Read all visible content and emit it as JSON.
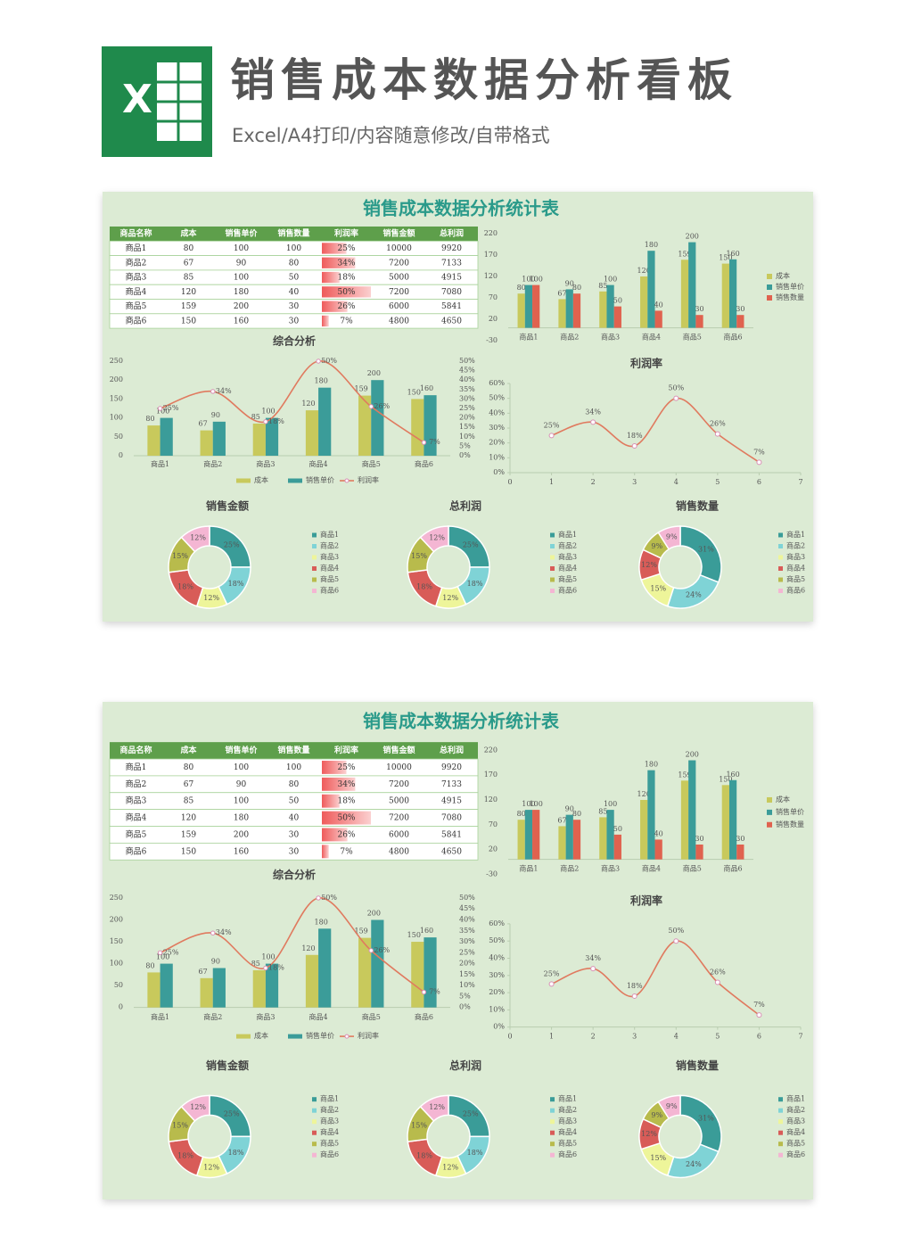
{
  "header": {
    "logo_letter": "X",
    "title": "销售成本数据分析看板",
    "subtitle": "Excel/A4打印/内容随意修改/自带格式"
  },
  "dashboard": {
    "title": "销售成本数据分析统计表",
    "table": {
      "columns": [
        "商品名称",
        "成本",
        "销售单价",
        "销售数量",
        "利润率",
        "销售金额",
        "总利润"
      ],
      "rows": [
        [
          "商品1",
          80,
          100,
          100,
          "25%",
          10000,
          9920
        ],
        [
          "商品2",
          67,
          90,
          80,
          "34%",
          7200,
          7133
        ],
        [
          "商品3",
          85,
          100,
          50,
          "18%",
          5000,
          4915
        ],
        [
          "商品4",
          120,
          180,
          40,
          "50%",
          7200,
          7080
        ],
        [
          "商品5",
          159,
          200,
          30,
          "26%",
          6000,
          5841
        ],
        [
          "商品6",
          150,
          160,
          30,
          "7%",
          4800,
          4650
        ]
      ]
    },
    "bars": {
      "type": "bar",
      "categories": [
        "商品1",
        "商品2",
        "商品3",
        "商品4",
        "商品5",
        "商品6"
      ],
      "series": [
        {
          "name": "成本",
          "color": "#c8c95c",
          "values": [
            80,
            67,
            85,
            120,
            159,
            150
          ]
        },
        {
          "name": "销售单价",
          "color": "#3b9c99",
          "values": [
            100,
            90,
            100,
            180,
            200,
            160
          ]
        },
        {
          "name": "销售数量",
          "color": "#e0624f",
          "values": [
            100,
            80,
            50,
            40,
            30,
            30
          ]
        }
      ],
      "ylim": [
        -30,
        220
      ],
      "yticks": [
        -30,
        20,
        70,
        120,
        170,
        220
      ],
      "grid": false
    },
    "combo": {
      "type": "bar",
      "title": "综合分析",
      "categories": [
        "商品1",
        "商品2",
        "商品3",
        "商品4",
        "商品5",
        "商品6"
      ],
      "series": [
        {
          "name": "成本",
          "color": "#c8c95c",
          "values": [
            80,
            67,
            85,
            120,
            159,
            150
          ]
        },
        {
          "name": "销售单价",
          "color": "#3b9c99",
          "values": [
            100,
            90,
            100,
            180,
            200,
            160
          ]
        },
        {
          "name": "利润率",
          "color": "#e07a5f",
          "axis": "y2",
          "type": "line",
          "values": [
            25,
            34,
            18,
            50,
            26,
            7
          ],
          "value_labels": [
            "25%",
            "34%",
            "18%",
            "50%",
            "26%",
            "7%"
          ]
        }
      ],
      "ylim": [
        0,
        250
      ],
      "yticks": [
        0,
        50,
        100,
        150,
        200,
        250
      ],
      "y2lim": [
        0,
        50
      ],
      "y2ticks": [
        {
          "value": 0,
          "label": "0%"
        },
        {
          "value": 5,
          "label": "5%"
        },
        {
          "value": 10,
          "label": "10%"
        },
        {
          "value": 15,
          "label": "15%"
        },
        {
          "value": 20,
          "label": "20%"
        },
        {
          "value": 25,
          "label": "25%"
        },
        {
          "value": 30,
          "label": "30%"
        },
        {
          "value": 35,
          "label": "35%"
        },
        {
          "value": 40,
          "label": "40%"
        },
        {
          "value": 45,
          "label": "45%"
        },
        {
          "value": 50,
          "label": "50%"
        }
      ]
    },
    "line": {
      "type": "line",
      "title": "利润率",
      "color": "#e07a5f",
      "x": [
        1,
        2,
        3,
        4,
        5,
        6
      ],
      "values": [
        25,
        34,
        18,
        50,
        26,
        7
      ],
      "value_labels": [
        "25%",
        "34%",
        "18%",
        "50%",
        "26%",
        "7%"
      ],
      "xlim": [
        0,
        7
      ],
      "xticks": [
        0,
        1,
        2,
        3,
        4,
        5,
        6,
        7
      ],
      "ylim": [
        0,
        60
      ],
      "yticks": [
        {
          "value": 0,
          "label": "0%"
        },
        {
          "value": 10,
          "label": "10%"
        },
        {
          "value": 20,
          "label": "20%"
        },
        {
          "value": 30,
          "label": "30%"
        },
        {
          "value": 40,
          "label": "40%"
        },
        {
          "value": 50,
          "label": "50%"
        },
        {
          "value": 60,
          "label": "60%"
        }
      ]
    },
    "pies": [
      {
        "type": "pie",
        "title": "销售金额",
        "categories": [
          "商品1",
          "商品2",
          "商品3",
          "商品4",
          "商品5",
          "商品6"
        ],
        "colors": [
          "#3a9c98",
          "#7fd3d6",
          "#eef59a",
          "#d85c58",
          "#b8bb4c",
          "#f4b6d3"
        ],
        "values": [
          25,
          18,
          12,
          18,
          15,
          12
        ],
        "value_labels": [
          "25%",
          "18%",
          "12%",
          "18%",
          "15%",
          "12%"
        ]
      },
      {
        "type": "pie",
        "title": "总利润",
        "categories": [
          "商品1",
          "商品2",
          "商品3",
          "商品4",
          "商品5",
          "商品6"
        ],
        "colors": [
          "#3a9c98",
          "#7fd3d6",
          "#eef59a",
          "#d85c58",
          "#b8bb4c",
          "#f4b6d3"
        ],
        "values": [
          25,
          18,
          12,
          18,
          15,
          12
        ],
        "value_labels": [
          "25%",
          "18%",
          "12%",
          "18%",
          "15%",
          "12%"
        ]
      },
      {
        "type": "pie",
        "title": "销售数量",
        "categories": [
          "商品1",
          "商品2",
          "商品3",
          "商品4",
          "商品5",
          "商品6"
        ],
        "colors": [
          "#3a9c98",
          "#7fd3d6",
          "#eef59a",
          "#d85c58",
          "#b8bb4c",
          "#f4b6d3"
        ],
        "values": [
          31,
          24,
          15,
          12,
          9,
          9
        ],
        "value_labels": [
          "31%",
          "24%",
          "15%",
          "12%",
          "9%",
          "9%"
        ]
      }
    ]
  }
}
